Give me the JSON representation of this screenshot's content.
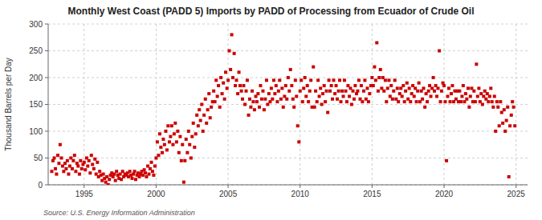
{
  "chart_data": {
    "type": "scatter",
    "title": "Monthly West Coast (PADD 5) Imports by PADD of Processing from Ecuador of Crude Oil",
    "ylabel": "Thousand Barrels per Day",
    "annotations": [
      "Source: U.S. Energy Information Administration"
    ],
    "color": "#cc0000",
    "marker": "square",
    "grid": true,
    "xlim": [
      1992.5,
      2025.8
    ],
    "ylim": [
      0,
      300
    ],
    "xticks": [
      1995,
      2000,
      2005,
      2010,
      2015,
      2020,
      2025
    ],
    "yticks": [
      0,
      50,
      100,
      150,
      200,
      250,
      300
    ],
    "x": [
      1992.75,
      1992.83,
      1992.92,
      1993.0,
      1993.08,
      1993.17,
      1993.25,
      1993.33,
      1993.42,
      1993.5,
      1993.58,
      1993.67,
      1993.75,
      1993.83,
      1993.92,
      1994.0,
      1994.08,
      1994.17,
      1994.25,
      1994.33,
      1994.42,
      1994.5,
      1994.58,
      1994.67,
      1994.75,
      1994.83,
      1994.92,
      1995.0,
      1995.08,
      1995.17,
      1995.25,
      1995.33,
      1995.42,
      1995.5,
      1995.58,
      1995.67,
      1995.75,
      1995.83,
      1995.92,
      1996.0,
      1996.08,
      1996.17,
      1996.25,
      1996.33,
      1996.42,
      1996.5,
      1996.58,
      1996.67,
      1996.75,
      1996.83,
      1996.92,
      1997.0,
      1997.08,
      1997.17,
      1997.25,
      1997.33,
      1997.42,
      1997.5,
      1997.58,
      1997.67,
      1997.75,
      1997.83,
      1997.92,
      1998.0,
      1998.08,
      1998.17,
      1998.25,
      1998.33,
      1998.42,
      1998.5,
      1998.58,
      1998.67,
      1998.75,
      1998.83,
      1998.92,
      1999.0,
      1999.08,
      1999.17,
      1999.25,
      1999.33,
      1999.42,
      1999.5,
      1999.58,
      1999.67,
      1999.75,
      1999.83,
      1999.92,
      2000.0,
      2000.08,
      2000.17,
      2000.25,
      2000.33,
      2000.42,
      2000.5,
      2000.58,
      2000.67,
      2000.75,
      2000.83,
      2000.92,
      2001.0,
      2001.08,
      2001.17,
      2001.25,
      2001.33,
      2001.42,
      2001.5,
      2001.58,
      2001.67,
      2001.75,
      2001.83,
      2001.92,
      2002.0,
      2002.08,
      2002.17,
      2002.25,
      2002.33,
      2002.42,
      2002.5,
      2002.58,
      2002.67,
      2002.75,
      2002.83,
      2002.92,
      2003.0,
      2003.08,
      2003.17,
      2003.25,
      2003.33,
      2003.42,
      2003.5,
      2003.58,
      2003.67,
      2003.75,
      2003.83,
      2003.92,
      2004.0,
      2004.08,
      2004.17,
      2004.25,
      2004.33,
      2004.42,
      2004.5,
      2004.58,
      2004.67,
      2004.75,
      2004.83,
      2004.92,
      2005.0,
      2005.08,
      2005.17,
      2005.25,
      2005.33,
      2005.42,
      2005.5,
      2005.58,
      2005.67,
      2005.75,
      2005.83,
      2005.92,
      2006.0,
      2006.08,
      2006.17,
      2006.25,
      2006.33,
      2006.42,
      2006.5,
      2006.58,
      2006.67,
      2006.75,
      2006.83,
      2006.92,
      2007.0,
      2007.08,
      2007.17,
      2007.25,
      2007.33,
      2007.42,
      2007.5,
      2007.58,
      2007.67,
      2007.75,
      2007.83,
      2007.92,
      2008.0,
      2008.08,
      2008.17,
      2008.25,
      2008.33,
      2008.42,
      2008.5,
      2008.58,
      2008.67,
      2008.75,
      2008.83,
      2008.92,
      2009.0,
      2009.08,
      2009.17,
      2009.25,
      2009.33,
      2009.42,
      2009.5,
      2009.58,
      2009.67,
      2009.75,
      2009.83,
      2009.92,
      2010.0,
      2010.08,
      2010.17,
      2010.25,
      2010.33,
      2010.42,
      2010.5,
      2010.58,
      2010.67,
      2010.75,
      2010.83,
      2010.92,
      2011.0,
      2011.08,
      2011.17,
      2011.25,
      2011.33,
      2011.42,
      2011.5,
      2011.58,
      2011.67,
      2011.75,
      2011.83,
      2011.92,
      2012.0,
      2012.08,
      2012.17,
      2012.25,
      2012.33,
      2012.42,
      2012.5,
      2012.58,
      2012.67,
      2012.75,
      2012.83,
      2012.92,
      2013.0,
      2013.08,
      2013.17,
      2013.25,
      2013.33,
      2013.42,
      2013.5,
      2013.58,
      2013.67,
      2013.75,
      2013.83,
      2013.92,
      2014.0,
      2014.08,
      2014.17,
      2014.25,
      2014.33,
      2014.42,
      2014.5,
      2014.58,
      2014.67,
      2014.75,
      2014.83,
      2014.92,
      2015.0,
      2015.08,
      2015.17,
      2015.25,
      2015.33,
      2015.42,
      2015.5,
      2015.58,
      2015.67,
      2015.75,
      2015.83,
      2015.92,
      2016.0,
      2016.08,
      2016.17,
      2016.25,
      2016.33,
      2016.42,
      2016.5,
      2016.58,
      2016.67,
      2016.75,
      2016.83,
      2016.92,
      2017.0,
      2017.08,
      2017.17,
      2017.25,
      2017.33,
      2017.42,
      2017.5,
      2017.58,
      2017.67,
      2017.75,
      2017.83,
      2017.92,
      2018.0,
      2018.08,
      2018.17,
      2018.25,
      2018.33,
      2018.42,
      2018.5,
      2018.58,
      2018.67,
      2018.75,
      2018.83,
      2018.92,
      2019.0,
      2019.08,
      2019.17,
      2019.25,
      2019.33,
      2019.42,
      2019.5,
      2019.58,
      2019.67,
      2019.75,
      2019.83,
      2019.92,
      2020.0,
      2020.08,
      2020.17,
      2020.25,
      2020.33,
      2020.42,
      2020.5,
      2020.58,
      2020.67,
      2020.75,
      2020.83,
      2020.92,
      2021.0,
      2021.08,
      2021.17,
      2021.25,
      2021.33,
      2021.42,
      2021.5,
      2021.58,
      2021.67,
      2021.75,
      2021.83,
      2021.92,
      2022.0,
      2022.08,
      2022.17,
      2022.25,
      2022.33,
      2022.42,
      2022.5,
      2022.58,
      2022.67,
      2022.75,
      2022.83,
      2022.92,
      2023.0,
      2023.08,
      2023.17,
      2023.25,
      2023.33,
      2023.42,
      2023.5,
      2023.58,
      2023.67,
      2023.75,
      2023.83,
      2023.92,
      2024.0,
      2024.08,
      2024.17,
      2024.25,
      2024.33,
      2024.42,
      2024.5,
      2024.58,
      2024.67,
      2024.75,
      2024.83,
      2024.92
    ],
    "values": [
      25,
      45,
      50,
      30,
      20,
      55,
      40,
      75,
      50,
      35,
      25,
      40,
      30,
      45,
      20,
      35,
      50,
      30,
      45,
      55,
      25,
      40,
      35,
      20,
      45,
      30,
      38,
      42,
      28,
      50,
      35,
      45,
      22,
      55,
      38,
      30,
      48,
      20,
      42,
      15,
      25,
      18,
      8,
      20,
      12,
      5,
      15,
      0,
      10,
      18,
      22,
      15,
      20,
      8,
      25,
      18,
      12,
      20,
      10,
      25,
      15,
      20,
      18,
      22,
      15,
      25,
      18,
      12,
      20,
      25,
      10,
      18,
      22,
      15,
      20,
      25,
      18,
      28,
      22,
      15,
      35,
      20,
      30,
      42,
      25,
      18,
      35,
      50,
      80,
      55,
      95,
      70,
      60,
      85,
      75,
      100,
      65,
      110,
      80,
      90,
      110,
      75,
      95,
      115,
      80,
      100,
      60,
      90,
      45,
      75,
      5,
      45,
      85,
      60,
      100,
      75,
      50,
      90,
      115,
      70,
      95,
      130,
      110,
      140,
      120,
      150,
      100,
      130,
      160,
      115,
      140,
      170,
      125,
      145,
      155,
      175,
      155,
      195,
      165,
      185,
      145,
      200,
      170,
      190,
      160,
      210,
      180,
      195,
      250,
      215,
      280,
      200,
      245,
      185,
      195,
      170,
      210,
      185,
      175,
      160,
      185,
      150,
      175,
      195,
      130,
      160,
      145,
      175,
      155,
      140,
      165,
      155,
      170,
      145,
      185,
      160,
      175,
      140,
      160,
      195,
      150,
      170,
      155,
      180,
      160,
      195,
      170,
      185,
      155,
      175,
      195,
      160,
      180,
      145,
      165,
      185,
      160,
      200,
      175,
      215,
      185,
      160,
      145,
      195,
      165,
      110,
      80,
      175,
      195,
      155,
      180,
      200,
      165,
      185,
      155,
      175,
      195,
      145,
      220,
      145,
      175,
      155,
      195,
      165,
      180,
      150,
      170,
      185,
      155,
      175,
      135,
      195,
      175,
      185,
      160,
      195,
      170,
      185,
      160,
      175,
      195,
      155,
      175,
      165,
      195,
      175,
      155,
      185,
      165,
      180,
      150,
      175,
      160,
      185,
      170,
      175,
      195,
      160,
      185,
      155,
      175,
      195,
      160,
      180,
      155,
      170,
      185,
      200,
      185,
      220,
      195,
      265,
      175,
      200,
      215,
      180,
      200,
      175,
      195,
      155,
      180,
      195,
      165,
      185,
      160,
      175,
      195,
      160,
      180,
      155,
      170,
      180,
      165,
      185,
      155,
      175,
      190,
      160,
      180,
      155,
      170,
      185,
      165,
      180,
      155,
      175,
      190,
      155,
      175,
      160,
      180,
      145,
      170,
      155,
      175,
      185,
      165,
      180,
      200,
      175,
      185,
      165,
      180,
      250,
      155,
      175,
      190,
      185,
      155,
      45,
      165,
      180,
      155,
      170,
      185,
      155,
      175,
      160,
      175,
      155,
      175,
      155,
      165,
      185,
      155,
      170,
      160,
      180,
      145,
      165,
      180,
      155,
      175,
      155,
      225,
      165,
      180,
      155,
      170,
      150,
      165,
      175,
      160,
      170,
      155,
      165,
      180,
      155,
      145,
      165,
      100,
      155,
      145,
      110,
      155,
      135,
      115,
      140,
      100,
      120,
      145,
      15,
      110,
      130,
      155,
      145,
      110
    ]
  }
}
